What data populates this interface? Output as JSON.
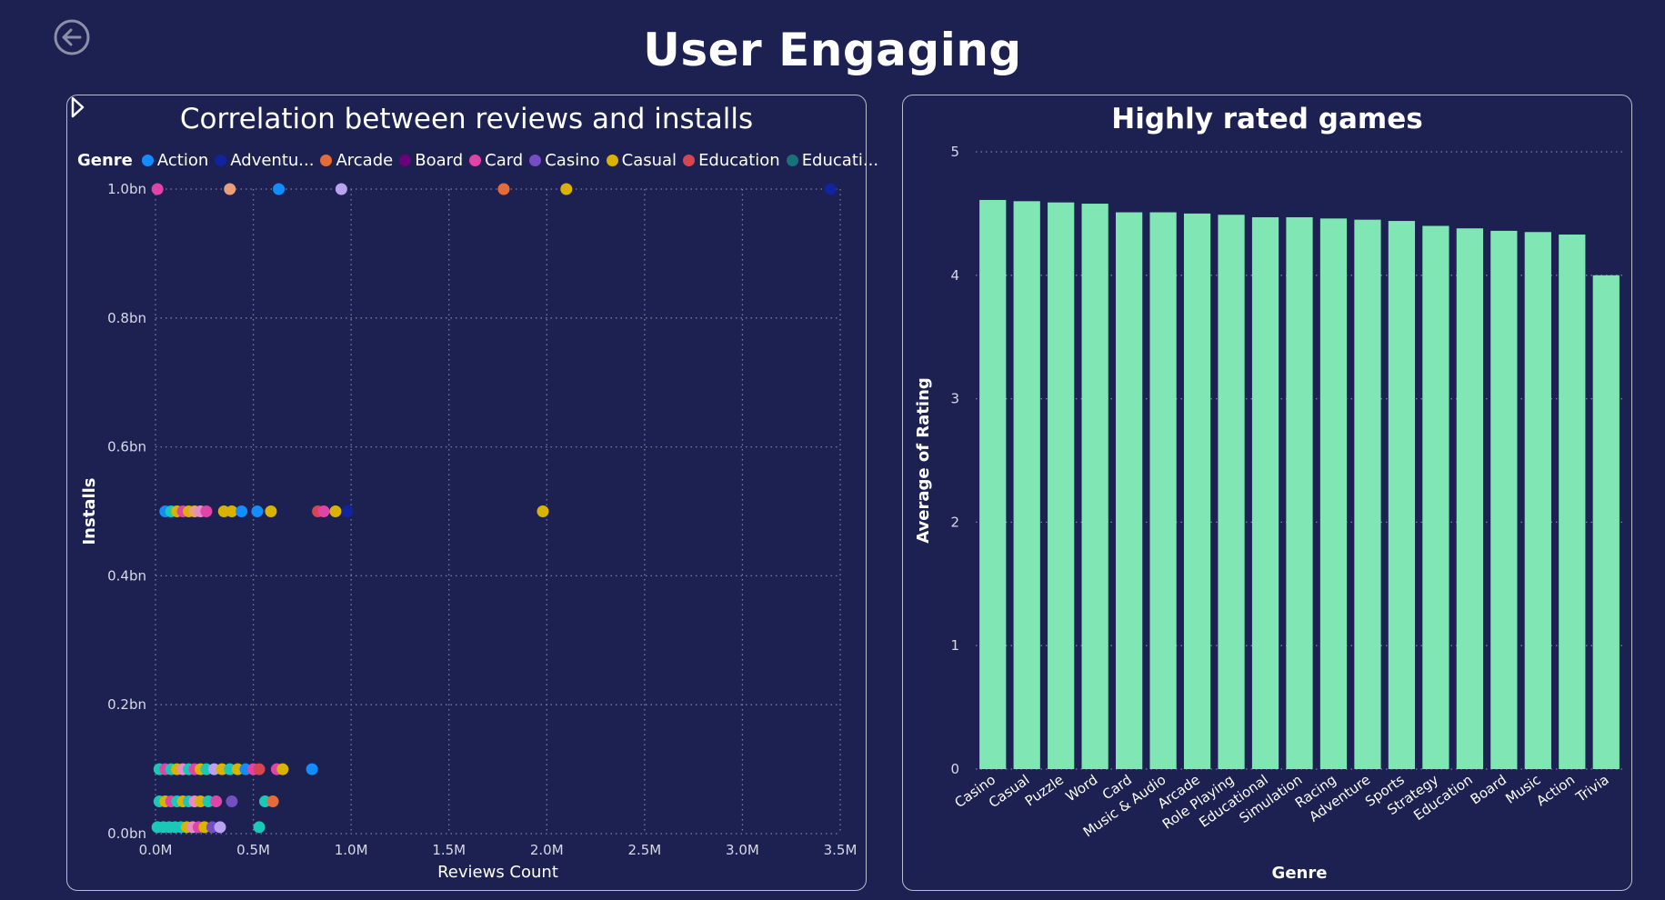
{
  "page": {
    "title": "User Engaging"
  },
  "icons": {
    "back": "back-arrow-icon",
    "legend_next": "chevron-right-icon"
  },
  "colors": {
    "background": "#1c2152",
    "bar": "#80e6b4",
    "border": "#b9bccb",
    "grid": "#7a7f9e"
  },
  "chart_data": [
    {
      "type": "scatter",
      "title": "Correlation between reviews and installs",
      "xlabel": "Reviews Count",
      "ylabel": "Installs",
      "xlim": [
        0,
        3.5
      ],
      "ylim": [
        0,
        1.0
      ],
      "x_ticks": [
        {
          "value": 0,
          "label": "0.0M"
        },
        {
          "value": 0.5,
          "label": "0.5M"
        },
        {
          "value": 1.0,
          "label": "1.0M"
        },
        {
          "value": 1.5,
          "label": "1.5M"
        },
        {
          "value": 2.0,
          "label": "2.0M"
        },
        {
          "value": 2.5,
          "label": "2.5M"
        },
        {
          "value": 3.0,
          "label": "3.0M"
        },
        {
          "value": 3.5,
          "label": "3.5M"
        }
      ],
      "y_ticks": [
        {
          "value": 0.0,
          "label": "0.0bn"
        },
        {
          "value": 0.2,
          "label": "0.2bn"
        },
        {
          "value": 0.4,
          "label": "0.4bn"
        },
        {
          "value": 0.6,
          "label": "0.6bn"
        },
        {
          "value": 0.8,
          "label": "0.8bn"
        },
        {
          "value": 1.0,
          "label": "1.0bn"
        }
      ],
      "grid": true,
      "legend": {
        "title": "Genre",
        "placement": "top",
        "entries": [
          {
            "name": "Action",
            "color": "#118dff"
          },
          {
            "name": "Adventu...",
            "color": "#12239e"
          },
          {
            "name": "Arcade",
            "color": "#e66c37"
          },
          {
            "name": "Board",
            "color": "#6b007b"
          },
          {
            "name": "Card",
            "color": "#e044a7"
          },
          {
            "name": "Casino",
            "color": "#744ec2"
          },
          {
            "name": "Casual",
            "color": "#d9b300"
          },
          {
            "name": "Education",
            "color": "#d64550"
          },
          {
            "name": "Educati...",
            "color": "#197278"
          }
        ]
      },
      "points": [
        {
          "x": 0.01,
          "y": 1.0,
          "color": "#e044a7"
        },
        {
          "x": 0.38,
          "y": 1.0,
          "color": "#e8a07a"
        },
        {
          "x": 0.63,
          "y": 1.0,
          "color": "#118dff"
        },
        {
          "x": 0.95,
          "y": 1.0,
          "color": "#b9a2f0"
        },
        {
          "x": 1.78,
          "y": 1.0,
          "color": "#e66c37"
        },
        {
          "x": 2.1,
          "y": 1.0,
          "color": "#d9b300"
        },
        {
          "x": 3.45,
          "y": 1.0,
          "color": "#12239e"
        },
        {
          "x": 0.05,
          "y": 0.5,
          "color": "#118dff"
        },
        {
          "x": 0.08,
          "y": 0.5,
          "color": "#1ac8b8"
        },
        {
          "x": 0.11,
          "y": 0.5,
          "color": "#d9b300"
        },
        {
          "x": 0.14,
          "y": 0.5,
          "color": "#e044a7"
        },
        {
          "x": 0.17,
          "y": 0.5,
          "color": "#d9b300"
        },
        {
          "x": 0.2,
          "y": 0.5,
          "color": "#e8a07a"
        },
        {
          "x": 0.23,
          "y": 0.5,
          "color": "#e88ac9"
        },
        {
          "x": 0.26,
          "y": 0.5,
          "color": "#e044a7"
        },
        {
          "x": 0.35,
          "y": 0.5,
          "color": "#d9b300"
        },
        {
          "x": 0.39,
          "y": 0.5,
          "color": "#d9b300"
        },
        {
          "x": 0.44,
          "y": 0.5,
          "color": "#118dff"
        },
        {
          "x": 0.52,
          "y": 0.5,
          "color": "#118dff"
        },
        {
          "x": 0.59,
          "y": 0.5,
          "color": "#d9b300"
        },
        {
          "x": 0.83,
          "y": 0.5,
          "color": "#d64550"
        },
        {
          "x": 0.86,
          "y": 0.5,
          "color": "#e044a7"
        },
        {
          "x": 0.92,
          "y": 0.5,
          "color": "#d9b300"
        },
        {
          "x": 0.98,
          "y": 0.5,
          "color": "#12239e"
        },
        {
          "x": 1.98,
          "y": 0.5,
          "color": "#d9b300"
        },
        {
          "x": 0.02,
          "y": 0.1,
          "color": "#1ac8b8"
        },
        {
          "x": 0.05,
          "y": 0.1,
          "color": "#e044a7"
        },
        {
          "x": 0.08,
          "y": 0.1,
          "color": "#1ac8b8"
        },
        {
          "x": 0.11,
          "y": 0.1,
          "color": "#d9b300"
        },
        {
          "x": 0.14,
          "y": 0.1,
          "color": "#e88ac9"
        },
        {
          "x": 0.17,
          "y": 0.1,
          "color": "#1ac8b8"
        },
        {
          "x": 0.2,
          "y": 0.1,
          "color": "#e044a7"
        },
        {
          "x": 0.23,
          "y": 0.1,
          "color": "#d9b300"
        },
        {
          "x": 0.26,
          "y": 0.1,
          "color": "#1ac8b8"
        },
        {
          "x": 0.3,
          "y": 0.1,
          "color": "#b9a2f0"
        },
        {
          "x": 0.34,
          "y": 0.1,
          "color": "#d9b300"
        },
        {
          "x": 0.38,
          "y": 0.1,
          "color": "#1ac8b8"
        },
        {
          "x": 0.42,
          "y": 0.1,
          "color": "#d9b300"
        },
        {
          "x": 0.46,
          "y": 0.1,
          "color": "#118dff"
        },
        {
          "x": 0.5,
          "y": 0.1,
          "color": "#e044a7"
        },
        {
          "x": 0.53,
          "y": 0.1,
          "color": "#d64550"
        },
        {
          "x": 0.62,
          "y": 0.1,
          "color": "#e044a7"
        },
        {
          "x": 0.65,
          "y": 0.1,
          "color": "#d9b300"
        },
        {
          "x": 0.8,
          "y": 0.1,
          "color": "#118dff"
        },
        {
          "x": 0.02,
          "y": 0.05,
          "color": "#1ac8b8"
        },
        {
          "x": 0.05,
          "y": 0.05,
          "color": "#d9b300"
        },
        {
          "x": 0.08,
          "y": 0.05,
          "color": "#e044a7"
        },
        {
          "x": 0.11,
          "y": 0.05,
          "color": "#1ac8b8"
        },
        {
          "x": 0.14,
          "y": 0.05,
          "color": "#d9b300"
        },
        {
          "x": 0.17,
          "y": 0.05,
          "color": "#1ac8b8"
        },
        {
          "x": 0.2,
          "y": 0.05,
          "color": "#e88ac9"
        },
        {
          "x": 0.23,
          "y": 0.05,
          "color": "#d9b300"
        },
        {
          "x": 0.27,
          "y": 0.05,
          "color": "#1ac8b8"
        },
        {
          "x": 0.31,
          "y": 0.05,
          "color": "#e044a7"
        },
        {
          "x": 0.39,
          "y": 0.05,
          "color": "#744ec2"
        },
        {
          "x": 0.56,
          "y": 0.05,
          "color": "#1ac8b8"
        },
        {
          "x": 0.6,
          "y": 0.05,
          "color": "#e66c37"
        },
        {
          "x": 0.01,
          "y": 0.01,
          "color": "#1ac8b8"
        },
        {
          "x": 0.04,
          "y": 0.01,
          "color": "#1ac8b8"
        },
        {
          "x": 0.07,
          "y": 0.01,
          "color": "#1ac8b8"
        },
        {
          "x": 0.1,
          "y": 0.01,
          "color": "#1ac8b8"
        },
        {
          "x": 0.13,
          "y": 0.01,
          "color": "#1ac8b8"
        },
        {
          "x": 0.16,
          "y": 0.01,
          "color": "#d9b300"
        },
        {
          "x": 0.19,
          "y": 0.01,
          "color": "#e88ac9"
        },
        {
          "x": 0.22,
          "y": 0.01,
          "color": "#e044a7"
        },
        {
          "x": 0.25,
          "y": 0.01,
          "color": "#d9b300"
        },
        {
          "x": 0.29,
          "y": 0.01,
          "color": "#744ec2"
        },
        {
          "x": 0.33,
          "y": 0.01,
          "color": "#b9a2f0"
        },
        {
          "x": 0.53,
          "y": 0.01,
          "color": "#1ac8b8"
        }
      ]
    },
    {
      "type": "bar",
      "title": "Highly rated games",
      "xlabel": "Genre",
      "ylabel": "Average of Rating",
      "ylim": [
        0,
        5
      ],
      "y_ticks": [
        0,
        1,
        2,
        3,
        4,
        5
      ],
      "grid": true,
      "categories": [
        "Casino",
        "Casual",
        "Puzzle",
        "Word",
        "Card",
        "Music & Audio",
        "Arcade",
        "Role Playing",
        "Educational",
        "Simulation",
        "Racing",
        "Adventure",
        "Sports",
        "Strategy",
        "Education",
        "Board",
        "Music",
        "Action",
        "Trivia"
      ],
      "values": [
        4.61,
        4.6,
        4.59,
        4.58,
        4.51,
        4.51,
        4.5,
        4.49,
        4.47,
        4.47,
        4.46,
        4.45,
        4.44,
        4.4,
        4.38,
        4.36,
        4.35,
        4.33,
        4.0
      ]
    }
  ]
}
